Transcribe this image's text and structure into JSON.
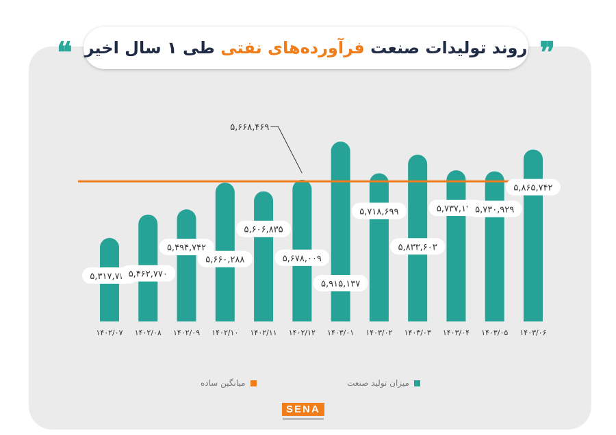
{
  "title": {
    "prefix": "روند تولیدات صنعت",
    "highlight": "فرآورده‌های نفتی",
    "suffix": "طی ۱ سال اخیر",
    "open_quote": "❞",
    "close_quote": "❝"
  },
  "colors": {
    "bar": "#26a296",
    "average_line": "#f07d1a",
    "title_dark": "#1f2a44",
    "title_accent": "#f07d1a",
    "quote_left": "#2aa89c",
    "quote_right": "#2aa89c"
  },
  "legend": {
    "series_label": "میزان تولید صنعت",
    "average_label": "میانگین ساده"
  },
  "logo": {
    "text": "SENA"
  },
  "chart_data": {
    "type": "bar",
    "categories": [
      "۱۴۰۲/۰۷",
      "۱۴۰۲/۰۸",
      "۱۴۰۲/۰۹",
      "۱۴۰۲/۱۰",
      "۱۴۰۲/۱۱",
      "۱۴۰۲/۱۲",
      "۱۴۰۳/۰۱",
      "۱۴۰۳/۰۲",
      "۱۴۰۳/۰۳",
      "۱۴۰۳/۰۴",
      "۱۴۰۳/۰۵",
      "۱۴۰۳/۰۶"
    ],
    "values": [
      5317732,
      5462770,
      5494742,
      5660288,
      5606835,
      5678009,
      5915137,
      5718699,
      5833603,
      5737136,
      5730929,
      5865742
    ],
    "value_labels": [
      "۵,۳۱۷,۷۳۲",
      "۵,۴۶۲,۷۷۰",
      "۵,۴۹۴,۷۴۲",
      "۵,۶۶۰,۲۸۸",
      "۵,۶۰۶,۸۳۵",
      "۵,۶۷۸,۰۰۹",
      "۵,۹۱۵,۱۳۷",
      "۵,۷۱۸,۶۹۹",
      "۵,۸۳۳,۶۰۳",
      "۵,۷۳۷,۱۳۶",
      "۵,۷۳۰,۹۲۹",
      "۵,۸۶۵,۷۴۲"
    ],
    "label_positions": [
      "top",
      "middle",
      "top",
      "middle",
      "top",
      "middle",
      "bottom",
      "top",
      "middle",
      "top",
      "top",
      "top"
    ],
    "series": [
      {
        "name": "میزان تولید صنعت"
      }
    ],
    "average": {
      "value": 5668469,
      "label": "۵,۶۶۸,۴۶۹",
      "name": "میانگین ساده"
    },
    "ylim": [
      4800000,
      6000000
    ],
    "grid": false,
    "legend_position": "bottom"
  }
}
